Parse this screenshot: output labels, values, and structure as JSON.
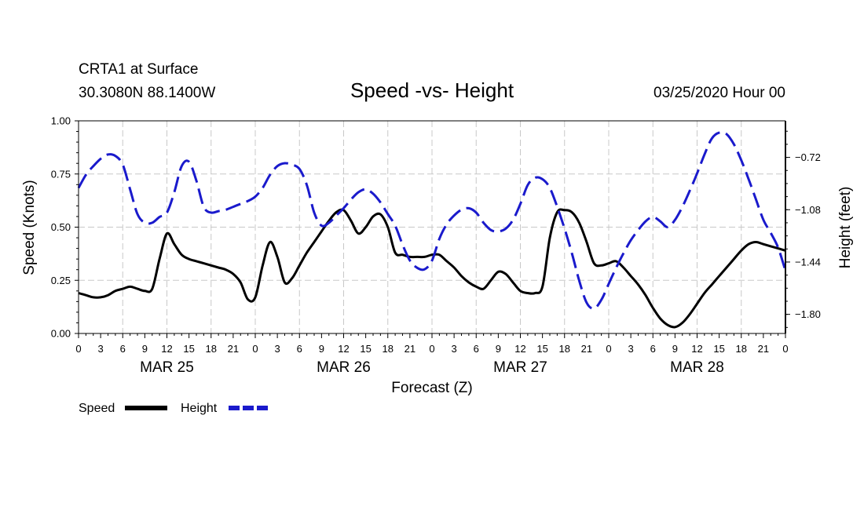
{
  "header": {
    "station": "CRTA1 at Surface",
    "coords": "30.3080N 88.1400W",
    "title": "Speed -vs- Height",
    "datetime": "03/25/2020 Hour 00"
  },
  "legend": {
    "speed_label": "Speed",
    "height_label": "Height"
  },
  "colors": {
    "speed": "#000000",
    "height": "#1a1acc",
    "grid": "#c8c8c8"
  },
  "chart_data": {
    "type": "line",
    "title": "Speed -vs- Height",
    "xlabel": "Forecast (Z)",
    "ylabel": "Speed (Knots)",
    "y2label": "Height (feet)",
    "grid": true,
    "legend_position": "bottom-left",
    "xlim": [
      0,
      96
    ],
    "ylim": [
      0,
      1
    ],
    "y2lim": [
      -1.9315,
      -0.4685
    ],
    "x_tick_labels": [
      "0",
      "3",
      "6",
      "9",
      "12",
      "15",
      "18",
      "21",
      "0",
      "3",
      "6",
      "9",
      "12",
      "15",
      "18",
      "21",
      "0",
      "3",
      "6",
      "9",
      "12",
      "15",
      "18",
      "21",
      "0",
      "3",
      "6",
      "9",
      "12",
      "15",
      "18",
      "21",
      "0"
    ],
    "day_labels": [
      {
        "label": "MAR 25",
        "x": 12
      },
      {
        "label": "MAR 26",
        "x": 36
      },
      {
        "label": "MAR 27",
        "x": 60
      },
      {
        "label": "MAR 28",
        "x": 84
      }
    ],
    "y_ticks": [
      {
        "value": 0,
        "label": "0.00"
      },
      {
        "value": 0.25,
        "label": "0.25"
      },
      {
        "value": 0.5,
        "label": "0.50"
      },
      {
        "value": 0.75,
        "label": "0.75"
      },
      {
        "value": 1,
        "label": "1.00"
      }
    ],
    "y2_ticks": [
      {
        "value": -0.72,
        "label": "−0.72"
      },
      {
        "value": -1.08,
        "label": "−1.08"
      },
      {
        "value": -1.44,
        "label": "−1.44"
      },
      {
        "value": -1.8,
        "label": "−1.80"
      }
    ],
    "series": [
      {
        "name": "Speed",
        "axis": "left",
        "style": "solid",
        "x": [
          0,
          1,
          2,
          3,
          4,
          5,
          6,
          7,
          8,
          9,
          10,
          11,
          12,
          13,
          14,
          15,
          16,
          17,
          18,
          19,
          20,
          21,
          22,
          23,
          24,
          25,
          26,
          27,
          28,
          29,
          30,
          31,
          32,
          33,
          34,
          35,
          36,
          37,
          38,
          39,
          40,
          41,
          42,
          43,
          44,
          45,
          46,
          47,
          48,
          49,
          50,
          51,
          52,
          53,
          54,
          55,
          56,
          57,
          58,
          59,
          60,
          61,
          62,
          63,
          64,
          65,
          66,
          67,
          68,
          69,
          70,
          71,
          72,
          73,
          74,
          75,
          76,
          77,
          78,
          79,
          80,
          81,
          82,
          83,
          84,
          85,
          86,
          87,
          88,
          89,
          90,
          91,
          92,
          93,
          94,
          95,
          96
        ],
        "values": [
          0.19,
          0.18,
          0.17,
          0.17,
          0.18,
          0.2,
          0.21,
          0.22,
          0.21,
          0.2,
          0.21,
          0.35,
          0.47,
          0.42,
          0.37,
          0.35,
          0.34,
          0.33,
          0.32,
          0.31,
          0.3,
          0.28,
          0.24,
          0.16,
          0.17,
          0.32,
          0.43,
          0.36,
          0.24,
          0.26,
          0.32,
          0.38,
          0.43,
          0.48,
          0.53,
          0.57,
          0.58,
          0.53,
          0.47,
          0.5,
          0.55,
          0.56,
          0.5,
          0.38,
          0.37,
          0.36,
          0.36,
          0.36,
          0.37,
          0.37,
          0.34,
          0.31,
          0.27,
          0.24,
          0.22,
          0.21,
          0.25,
          0.29,
          0.28,
          0.24,
          0.2,
          0.19,
          0.19,
          0.22,
          0.45,
          0.57,
          0.58,
          0.57,
          0.52,
          0.43,
          0.33,
          0.32,
          0.33,
          0.34,
          0.31,
          0.27,
          0.23,
          0.18,
          0.12,
          0.07,
          0.04,
          0.03,
          0.05,
          0.09,
          0.14,
          0.19,
          0.23,
          0.27,
          0.31,
          0.35,
          0.39,
          0.42,
          0.43,
          0.42,
          0.41,
          0.4,
          0.39
        ]
      },
      {
        "name": "Height",
        "axis": "right",
        "style": "dashed",
        "x": [
          0,
          1,
          2,
          3,
          4,
          5,
          6,
          7,
          8,
          9,
          10,
          11,
          12,
          13,
          14,
          15,
          16,
          17,
          18,
          19,
          20,
          21,
          22,
          23,
          24,
          25,
          26,
          27,
          28,
          29,
          30,
          31,
          32,
          33,
          34,
          35,
          36,
          37,
          38,
          39,
          40,
          41,
          42,
          43,
          44,
          45,
          46,
          47,
          48,
          49,
          50,
          51,
          52,
          53,
          54,
          55,
          56,
          57,
          58,
          59,
          60,
          61,
          62,
          63,
          64,
          65,
          66,
          67,
          68,
          69,
          70,
          71,
          72,
          73,
          74,
          75,
          76,
          77,
          78,
          79,
          80,
          81,
          82,
          83,
          84,
          85,
          86,
          87,
          88,
          89,
          90,
          91,
          92,
          93,
          94,
          95,
          96
        ],
        "values": [
          -0.93,
          -0.84,
          -0.78,
          -0.73,
          -0.7,
          -0.71,
          -0.77,
          -0.94,
          -1.11,
          -1.17,
          -1.17,
          -1.13,
          -1.1,
          -0.96,
          -0.78,
          -0.75,
          -0.88,
          -1.06,
          -1.1,
          -1.09,
          -1.08,
          -1.06,
          -1.04,
          -1.02,
          -0.99,
          -0.93,
          -0.84,
          -0.78,
          -0.76,
          -0.77,
          -0.8,
          -0.91,
          -1.1,
          -1.19,
          -1.17,
          -1.12,
          -1.07,
          -1.01,
          -0.96,
          -0.94,
          -0.97,
          -1.03,
          -1.11,
          -1.19,
          -1.32,
          -1.43,
          -1.48,
          -1.49,
          -1.43,
          -1.28,
          -1.18,
          -1.12,
          -1.08,
          -1.07,
          -1.1,
          -1.17,
          -1.22,
          -1.23,
          -1.21,
          -1.15,
          -1.04,
          -0.91,
          -0.86,
          -0.87,
          -0.93,
          -1.06,
          -1.21,
          -1.38,
          -1.57,
          -1.72,
          -1.76,
          -1.7,
          -1.59,
          -1.48,
          -1.38,
          -1.29,
          -1.22,
          -1.16,
          -1.13,
          -1.16,
          -1.2,
          -1.15,
          -1.06,
          -0.95,
          -0.83,
          -0.7,
          -0.59,
          -0.55,
          -0.56,
          -0.63,
          -0.74,
          -0.87,
          -1.01,
          -1.15,
          -1.24,
          -1.34,
          -1.5
        ]
      }
    ]
  }
}
